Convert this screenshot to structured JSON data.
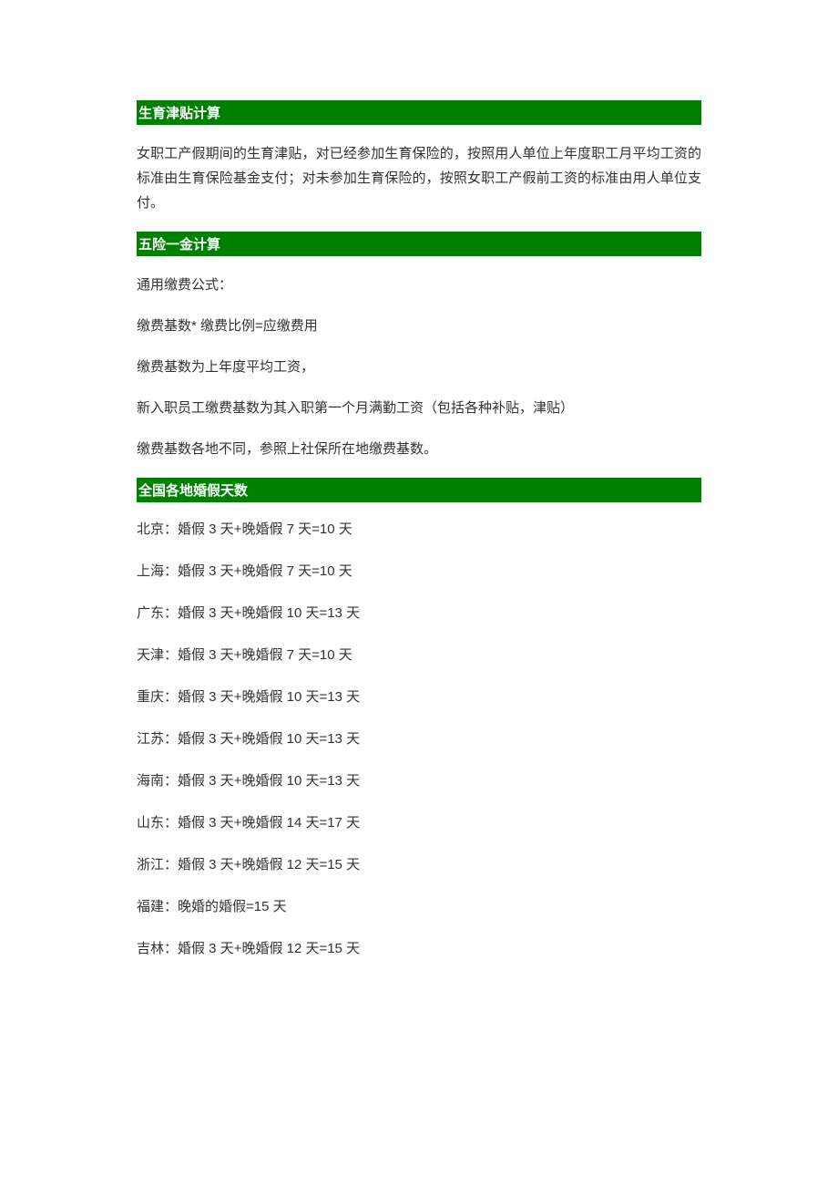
{
  "colors": {
    "header_bg": "#008000",
    "header_text": "#ffffff",
    "body_text": "#333333",
    "page_bg": "#ffffff"
  },
  "typography": {
    "header_fontsize": 15,
    "body_fontsize": 15,
    "header_weight": "bold",
    "line_height": 1.8
  },
  "sections": {
    "section1": {
      "title": "生育津贴计算",
      "paragraphs": [
        "女职工产假期间的生育津贴，对已经参加生育保险的，按照用人单位上年度职工月平均工资的标准由生育保险基金支付；对未参加生育保险的，按照女职工产假前工资的标准由用人单位支付。"
      ]
    },
    "section2": {
      "title": "五险一金计算",
      "paragraphs": [
        "通用缴费公式：",
        "缴费基数* 缴费比例=应缴费用",
        "缴费基数为上年度平均工资，",
        "新入职员工缴费基数为其入职第一个月满勤工资（包括各种补贴，津贴）",
        "缴费基数各地不同，参照上社保所在地缴费基数。"
      ]
    },
    "section3": {
      "title": "全国各地婚假天数",
      "items": [
        "北京：婚假 3 天+晚婚假 7 天=10 天",
        "上海：婚假 3 天+晚婚假 7 天=10 天",
        "广东：婚假 3 天+晚婚假 10 天=13 天",
        "天津：婚假 3 天+晚婚假 7 天=10 天",
        "重庆：婚假 3 天+晚婚假 10 天=13 天",
        "江苏：婚假 3 天+晚婚假 10 天=13 天",
        "海南：婚假 3 天+晚婚假 10 天=13 天",
        "山东：婚假 3 天+晚婚假 14 天=17 天",
        "浙江：婚假 3 天+晚婚假 12 天=15 天",
        "福建：晚婚的婚假=15 天",
        "吉林：婚假 3 天+晚婚假 12 天=15 天"
      ]
    }
  }
}
